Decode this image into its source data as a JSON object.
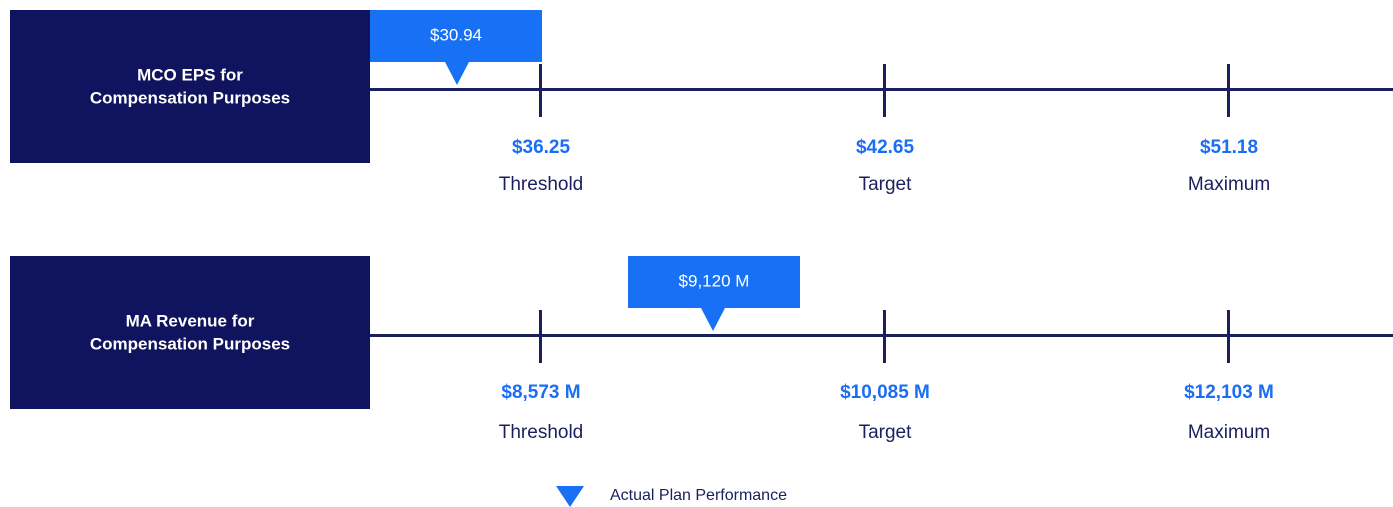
{
  "rows": [
    {
      "label": [
        "MCO EPS for",
        "Compensation Purposes"
      ],
      "actual": "$30.94",
      "levels": [
        {
          "value": "$36.25",
          "name": "Threshold"
        },
        {
          "value": "$42.65",
          "name": "Target"
        },
        {
          "value": "$51.18",
          "name": "Maximum"
        }
      ]
    },
    {
      "label": [
        "MA Revenue for",
        "Compensation Purposes"
      ],
      "actual": "$9,120 M",
      "levels": [
        {
          "value": "$8,573 M",
          "name": "Threshold"
        },
        {
          "value": "$10,085 M",
          "name": "Target"
        },
        {
          "value": "$12,103 M",
          "name": "Maximum"
        }
      ]
    }
  ],
  "legend": "Actual Plan Performance"
}
